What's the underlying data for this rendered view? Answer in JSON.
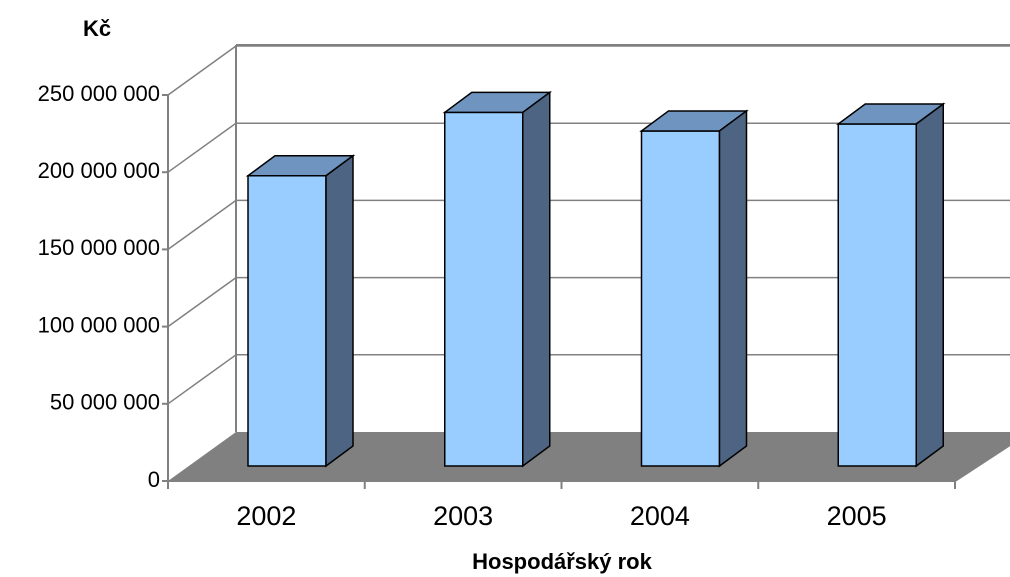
{
  "chart_data": {
    "type": "bar3d",
    "y_axis_label": "Kč",
    "x_axis_label": "Hospodářský rok",
    "categories": [
      "2002",
      "2003",
      "2004",
      "2005"
    ],
    "values": [
      188000000,
      229000000,
      217000000,
      221500000
    ],
    "color": "#99ccff",
    "ylim": [
      0,
      250000000
    ],
    "yticks": [
      0,
      {
        "value": 50000000,
        "label": "50 000 000"
      },
      {
        "value": 100000000,
        "label": "100 000 000"
      },
      {
        "value": 150000000,
        "label": "150 000 000"
      },
      {
        "value": 200000000,
        "label": "200 000 000"
      },
      {
        "value": 250000000,
        "label": "250 000 000"
      }
    ],
    "grid": true
  }
}
